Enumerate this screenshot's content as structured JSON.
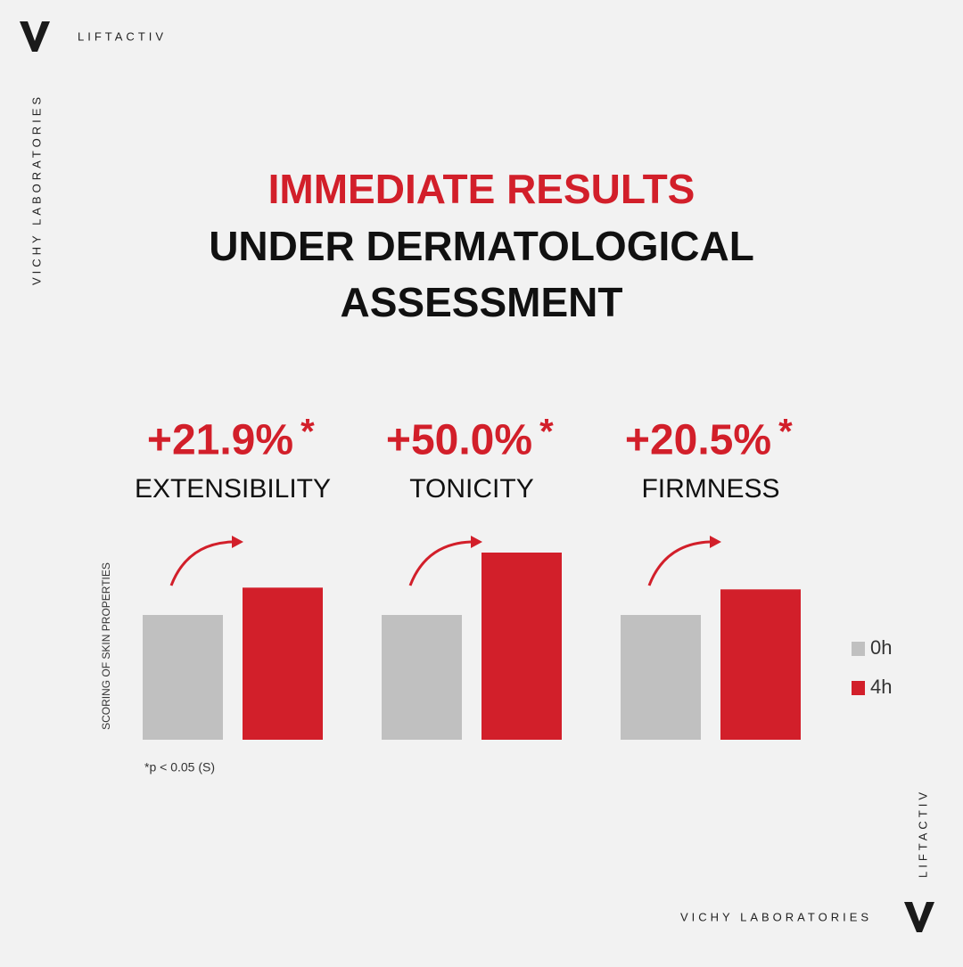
{
  "brand": {
    "product": "LIFTACTIV",
    "company": "VICHY LABORATORIES"
  },
  "chart_data": {
    "type": "bar",
    "title": "IMMEDIATE RESULTS",
    "subtitle": [
      "UNDER DERMATOLOGICAL",
      "ASSESSMENT"
    ],
    "y_label": "SCORING OF SKIN PROPERTIES",
    "categories": [
      "EXTENSIBILITY",
      "TONICITY",
      "FIRMNESS"
    ],
    "changes": [
      "+21.9%",
      "+50.0%",
      "+20.5%"
    ],
    "significance_marker": "*",
    "footnote": "*p < 0.05 (S)",
    "series": [
      {
        "name": "0h",
        "color": "#c0c0c0",
        "values": [
          100,
          100,
          100
        ]
      },
      {
        "name": "4h",
        "color": "#d21f2a",
        "values": [
          121.9,
          150,
          120.5
        ]
      }
    ],
    "ylim": [
      0,
      150
    ]
  }
}
